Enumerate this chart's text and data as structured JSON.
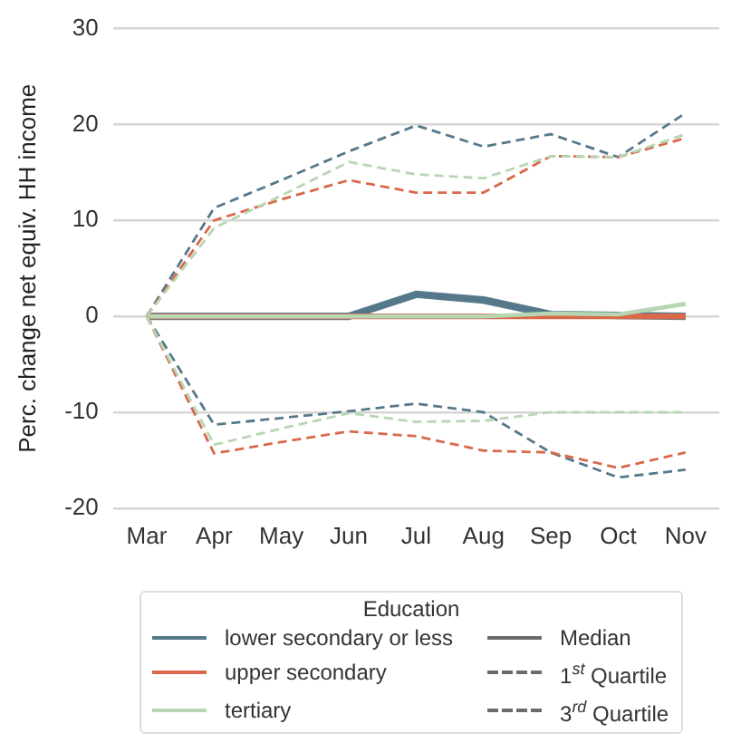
{
  "chart_data": {
    "type": "line",
    "ylabel": "Perc. change net equiv. HH income",
    "legend_title": "Education",
    "legend": "bottom",
    "grid": "y",
    "marker": "none",
    "categories": [
      "Mar",
      "Apr",
      "May",
      "Jun",
      "Jul",
      "Aug",
      "Sep",
      "Oct",
      "Nov"
    ],
    "ylim": [
      -20,
      30
    ],
    "yticks": [
      -20,
      -10,
      0,
      10,
      20,
      30
    ],
    "series": [
      {
        "name": "lower secondary or less",
        "color": "#56788b",
        "line_style": "solid",
        "values": [
          0,
          0,
          0,
          0,
          2.3,
          1.7,
          0.2,
          0.1,
          0
        ]
      },
      {
        "name": "upper secondary",
        "color": "#d9694a",
        "line_style": "solid",
        "values": [
          0,
          0,
          0,
          0,
          0,
          0,
          0,
          0,
          0
        ]
      },
      {
        "name": "tertiary",
        "color": "#b7d6b4",
        "line_style": "solid",
        "values": [
          0,
          0,
          0,
          0,
          0,
          0,
          0.3,
          0.2,
          1.3
        ]
      },
      {
        "color": "#56788b",
        "line_style": "dashed",
        "values": [
          0,
          -11.3,
          -10.6,
          -9.9,
          -9.1,
          -10,
          -14.2,
          -16.8,
          -16
        ]
      },
      {
        "color": "#d9694a",
        "line_style": "dashed",
        "values": [
          0,
          -14.3,
          -13.1,
          -12,
          -12.5,
          -14,
          -14.2,
          -15.8,
          -14.2
        ]
      },
      {
        "color": "#b7d6b4",
        "line_style": "dashed",
        "values": [
          0,
          -13.4,
          -11.7,
          -10.1,
          -11,
          -10.9,
          -10,
          -10,
          -10
        ]
      },
      {
        "color": "#56788b",
        "line_style": "dashed",
        "values": [
          0,
          11.3,
          14.2,
          17.2,
          19.9,
          17.7,
          19,
          16.6,
          21.2
        ]
      },
      {
        "color": "#d9694a",
        "line_style": "dashed",
        "values": [
          0,
          10,
          12.2,
          14.2,
          12.9,
          12.9,
          16.7,
          16.6,
          18.6
        ]
      },
      {
        "color": "#b7d6b4",
        "line_style": "dashed",
        "values": [
          0,
          9.2,
          12.6,
          16.1,
          14.8,
          14.4,
          16.7,
          16.6,
          19
        ]
      },
      {
        "name": "Median",
        "color": "#6b6b6b",
        "line_style": "solid",
        "values": [
          null,
          null,
          null,
          null,
          null,
          null,
          null,
          null,
          null
        ]
      },
      {
        "name": "1$^{st}$ Quartile",
        "color": "#6b6b6b",
        "line_style": "dashed",
        "values": [
          null,
          null,
          null,
          null,
          null,
          null,
          null,
          null,
          null
        ]
      },
      {
        "name": "3$^{rd}$ Quartile",
        "color": "#6b6b6b",
        "line_style": "dashed",
        "values": [
          null,
          null,
          null,
          null,
          null,
          null,
          null,
          null,
          null
        ]
      }
    ]
  }
}
